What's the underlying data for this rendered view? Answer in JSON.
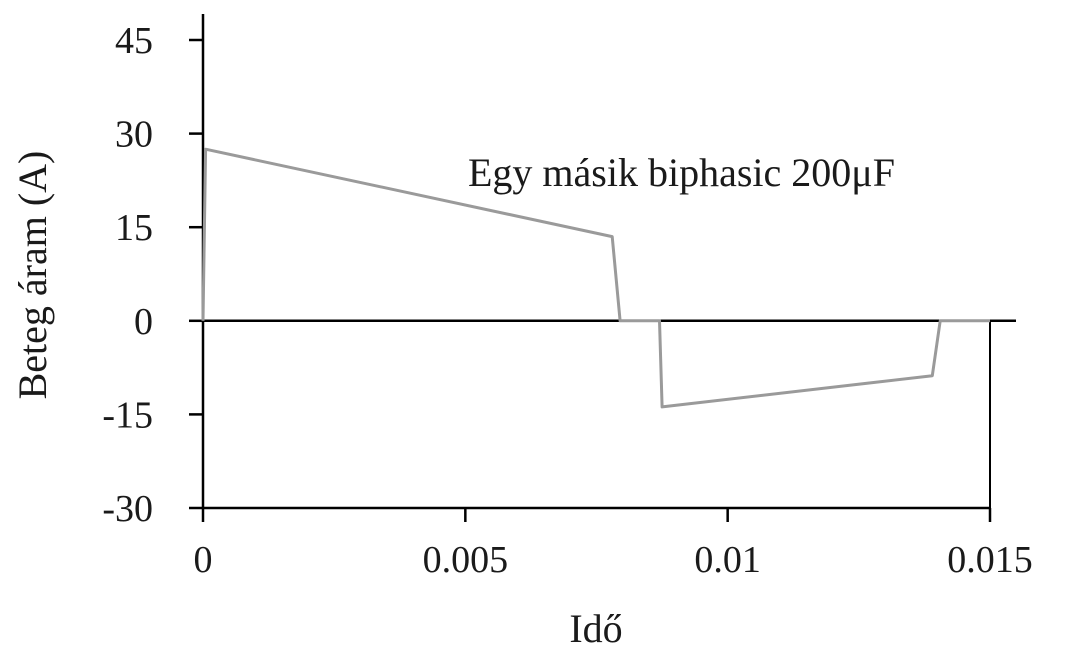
{
  "chart_data": {
    "type": "line",
    "title": "",
    "annotation": "Egy másik biphasic 200μF",
    "xlabel": "Idő",
    "ylabel": "Beteg áram (A)",
    "xlim": [
      0,
      0.015
    ],
    "ylim": [
      -30,
      45
    ],
    "x_ticks": [
      0,
      0.005,
      0.01,
      0.015
    ],
    "x_tick_labels": [
      "0",
      "0.005",
      "0.01",
      "0.015"
    ],
    "y_ticks": [
      45,
      30,
      15,
      0,
      -15,
      -30
    ],
    "y_tick_labels": [
      "45",
      "30",
      "15",
      "0",
      "-15",
      "-30"
    ],
    "grid": false,
    "colors": {
      "series": "#9a9a9a",
      "axis": "#000000"
    },
    "series": [
      {
        "x": [
          0,
          5e-05,
          0.0078,
          0.00795,
          0.0087,
          0.00875,
          0.0139,
          0.01405,
          0.015
        ],
        "y": [
          0,
          27.5,
          13.5,
          0,
          0,
          -13.8,
          -8.8,
          0,
          0
        ]
      }
    ]
  }
}
